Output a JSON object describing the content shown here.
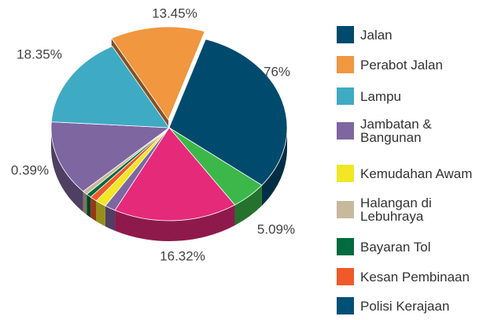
{
  "chart_data": {
    "type": "pie",
    "categories": [
      "Jalan",
      null,
      null,
      null,
      "Kemudahan Awam",
      "Kesan Pembinaan",
      "Bayaran Tol",
      "Halangan di Lebuhraya",
      "Jambatan & Bangunan",
      "Lampu",
      "Perabot Jalan"
    ],
    "values": [
      30.6,
      5,
      17,
      1.5,
      1.5,
      1,
      0.7,
      0.7,
      13,
      16,
      13
    ],
    "colors": [
      "#004a6e",
      "#3cb84a",
      "#e52a7a",
      "#7e66a0",
      "#f2e625",
      "#ef5a28",
      "#006b3f",
      "#c7b99b",
      "#7e66a0",
      "#3faac4",
      "#f0973f"
    ],
    "exploded": [
      10
    ],
    "legend": [
      {
        "name": "Jalan",
        "color": "#004a6e"
      },
      {
        "name": "Perabot Jalan",
        "color": "#f0973f"
      },
      {
        "name": "Lampu",
        "color": "#3faac4"
      },
      {
        "name": "Jambatan & Bangunan",
        "color": "#7e66a0"
      },
      {
        "name": "Kemudahan Awam",
        "color": "#f2e625"
      },
      {
        "name": "Halangan di Lebuhraya",
        "color": "#c7b99b"
      },
      {
        "name": "Bayaran Tol",
        "color": "#006b3f"
      },
      {
        "name": "Kesan Pembinaan",
        "color": "#ef5a28"
      },
      {
        "name": "Polisi Kerajaan",
        "color": "#005075"
      }
    ],
    "annotations": [
      "13.45%",
      "18.35%",
      "76%",
      "0.39%",
      "5.09%",
      "16.32%"
    ]
  }
}
